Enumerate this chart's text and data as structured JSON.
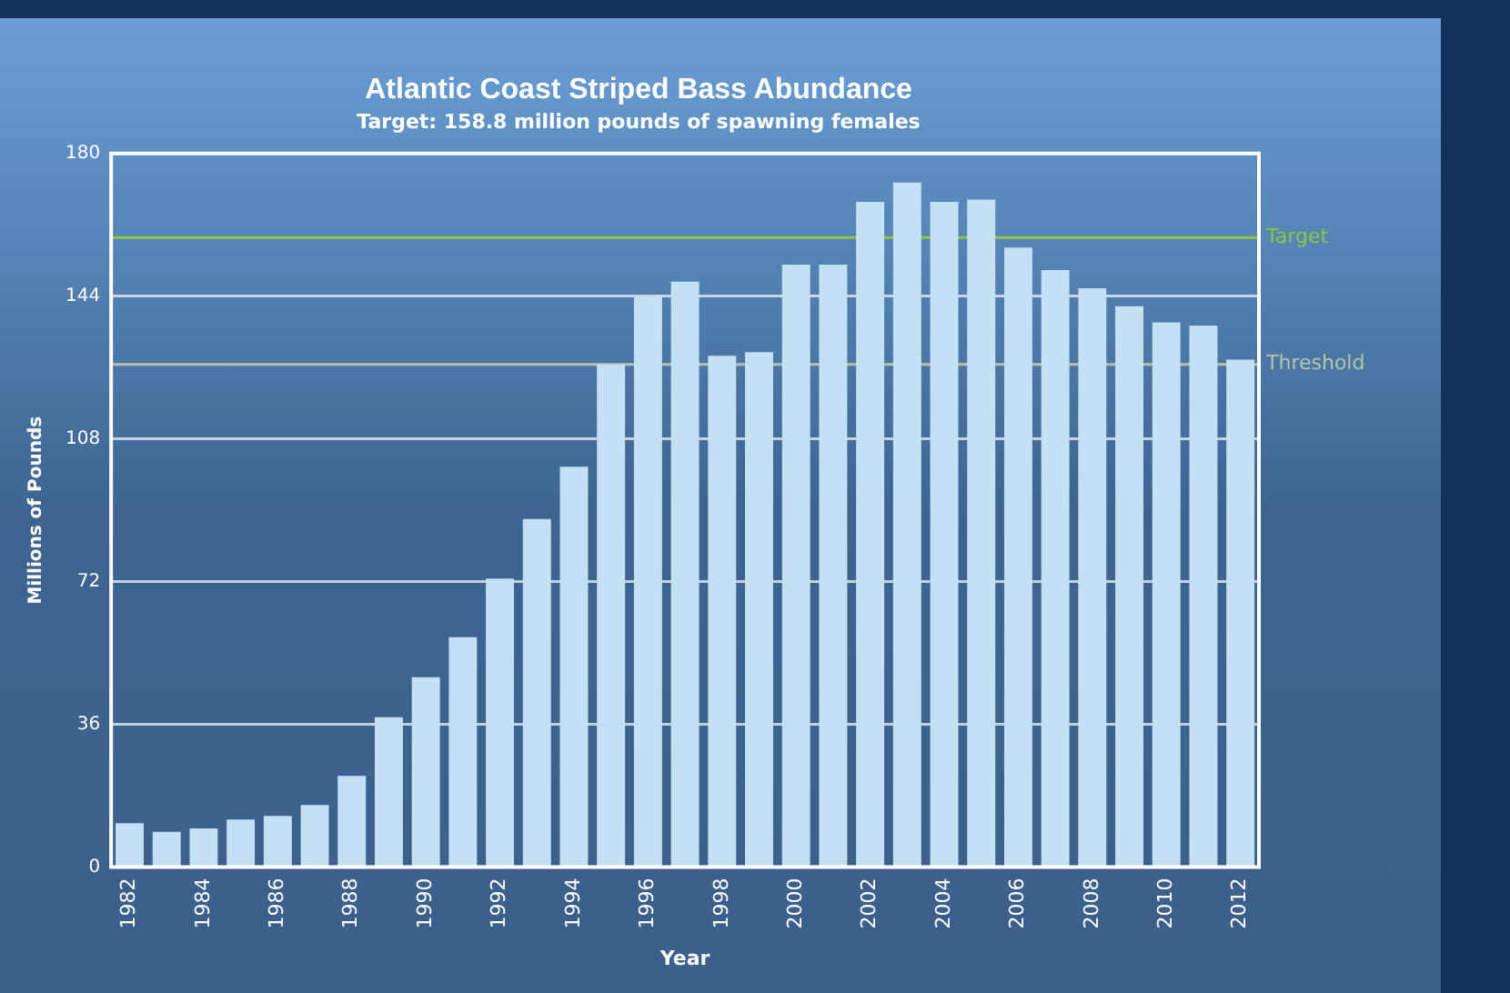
{
  "chart_data": {
    "type": "bar",
    "title": "Atlantic Coast Striped Bass Abundance",
    "subtitle": "Target: 158.8 million pounds of spawning females",
    "xlabel": "Year",
    "ylabel": "Millions of Pounds",
    "categories": [
      "1982",
      null,
      "1984",
      null,
      "1986",
      null,
      "1988",
      null,
      "1990",
      null,
      "1992",
      null,
      "1994",
      null,
      "1996",
      null,
      "1998",
      null,
      "2000",
      null,
      "2002",
      null,
      "2004",
      null,
      "2006",
      null,
      "2008",
      null,
      "2010",
      null,
      "2012"
    ],
    "values": [
      11.1,
      8.9,
      9.8,
      12.0,
      12.9,
      15.7,
      23.0,
      37.8,
      47.9,
      58.0,
      72.8,
      87.8,
      101.0,
      126.8,
      144.0,
      147.7,
      129.0,
      129.9,
      152.0,
      152.0,
      167.8,
      172.7,
      167.8,
      168.4,
      156.3,
      150.6,
      146.0,
      141.5,
      137.4,
      136.6,
      128.0
    ],
    "color": "#c4e0f4",
    "ylim": [
      0,
      180
    ],
    "yticks": [
      0,
      36,
      72,
      108,
      144,
      180
    ],
    "grid": "y",
    "legend": false,
    "ref_lines": [
      {
        "axis": "y",
        "value": 158.8,
        "label": "Target",
        "color": "#8cc63f"
      },
      {
        "axis": "y",
        "value": 126.8,
        "label": "Threshold",
        "color": "#b8c4a8"
      }
    ]
  }
}
